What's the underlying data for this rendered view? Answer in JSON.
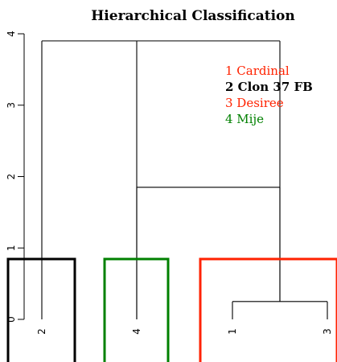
{
  "chart_data": {
    "type": "dendrogram",
    "title": "Hierarchical Classification",
    "ylim": [
      0,
      4
    ],
    "yticks": [
      "0",
      "1",
      "2",
      "3",
      "4"
    ],
    "leaves": [
      {
        "label": "2",
        "height": 0
      },
      {
        "label": "4",
        "height": 0
      },
      {
        "label": "1",
        "height": 0
      },
      {
        "label": "3",
        "height": 0
      }
    ],
    "merges": [
      {
        "members": [
          "1",
          "3"
        ],
        "height": 0.25
      },
      {
        "members": [
          "4",
          "1",
          "3"
        ],
        "height": 1.85
      },
      {
        "members": [
          "2",
          "4",
          "1",
          "3"
        ],
        "height": 3.9
      }
    ],
    "clusters": [
      {
        "leaves": [
          "2"
        ],
        "color": "#000000"
      },
      {
        "leaves": [
          "4"
        ],
        "color": "#008000"
      },
      {
        "leaves": [
          "1",
          "3"
        ],
        "color": "#ff2200"
      }
    ],
    "legend": [
      {
        "text": "1 Cardinal",
        "color": "#ff2200",
        "bold": false
      },
      {
        "text": "2 Clon 37 FB",
        "color": "#000000",
        "bold": true
      },
      {
        "text": "3 Desiree",
        "color": "#ff2200",
        "bold": false
      },
      {
        "text": "4 Mije",
        "color": "#008000",
        "bold": false
      }
    ],
    "legend_position": "top-right",
    "grid": false
  }
}
